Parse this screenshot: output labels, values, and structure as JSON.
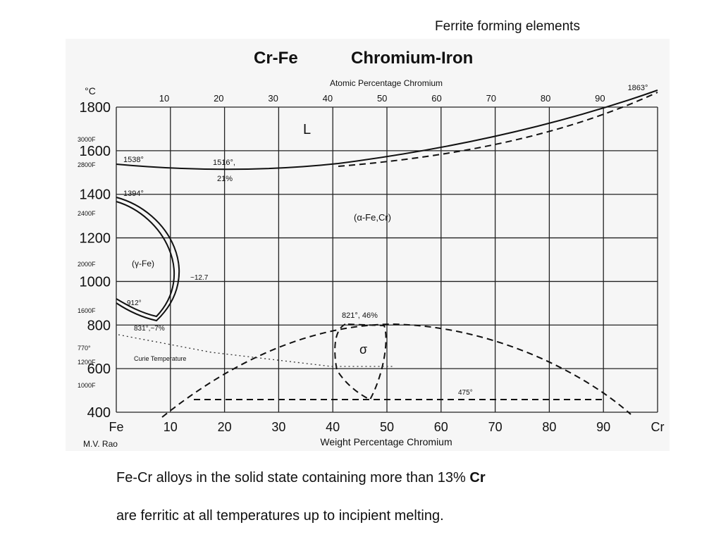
{
  "header": {
    "title": "Ferrite forming elements"
  },
  "diagram": {
    "title_formula": "Cr-Fe",
    "title_name": "Chromium-Iron",
    "top_axis_label": "Atomic Percentage Chromium",
    "top_ticks": [
      "10",
      "20",
      "30",
      "40",
      "50",
      "60",
      "70",
      "80",
      "90"
    ],
    "top_right": "1863°",
    "y_unit": "°C",
    "y_ticks": [
      "1800",
      "1600",
      "1400",
      "1200",
      "1000",
      "800",
      "600",
      "400"
    ],
    "f_ticks": [
      "3000F",
      "2800F",
      "2400F",
      "2000F",
      "1600F",
      "770°",
      "1200F",
      "1000F"
    ],
    "x_ticks": [
      "Fe",
      "10",
      "20",
      "30",
      "40",
      "50",
      "60",
      "70",
      "80",
      "90",
      "Cr"
    ],
    "x_axis_label": "Weight Percentage Chromium",
    "credit": "M.V. Rao",
    "labels": [
      "L",
      "1538°",
      "1516°,",
      "21%",
      "1394°",
      "(α-Fe,Cr)",
      "(γ-Fe)",
      "~12.7",
      "912°",
      "831°,~7%",
      "Curie Temperature",
      "821°, 46%",
      "σ",
      "475°"
    ]
  },
  "caption": {
    "line1": "Fe-Cr alloys in the solid state containing more than 13% ",
    "line1_bold": "Cr",
    "line2": "are ferritic at all temperatures up to incipient melting."
  }
}
